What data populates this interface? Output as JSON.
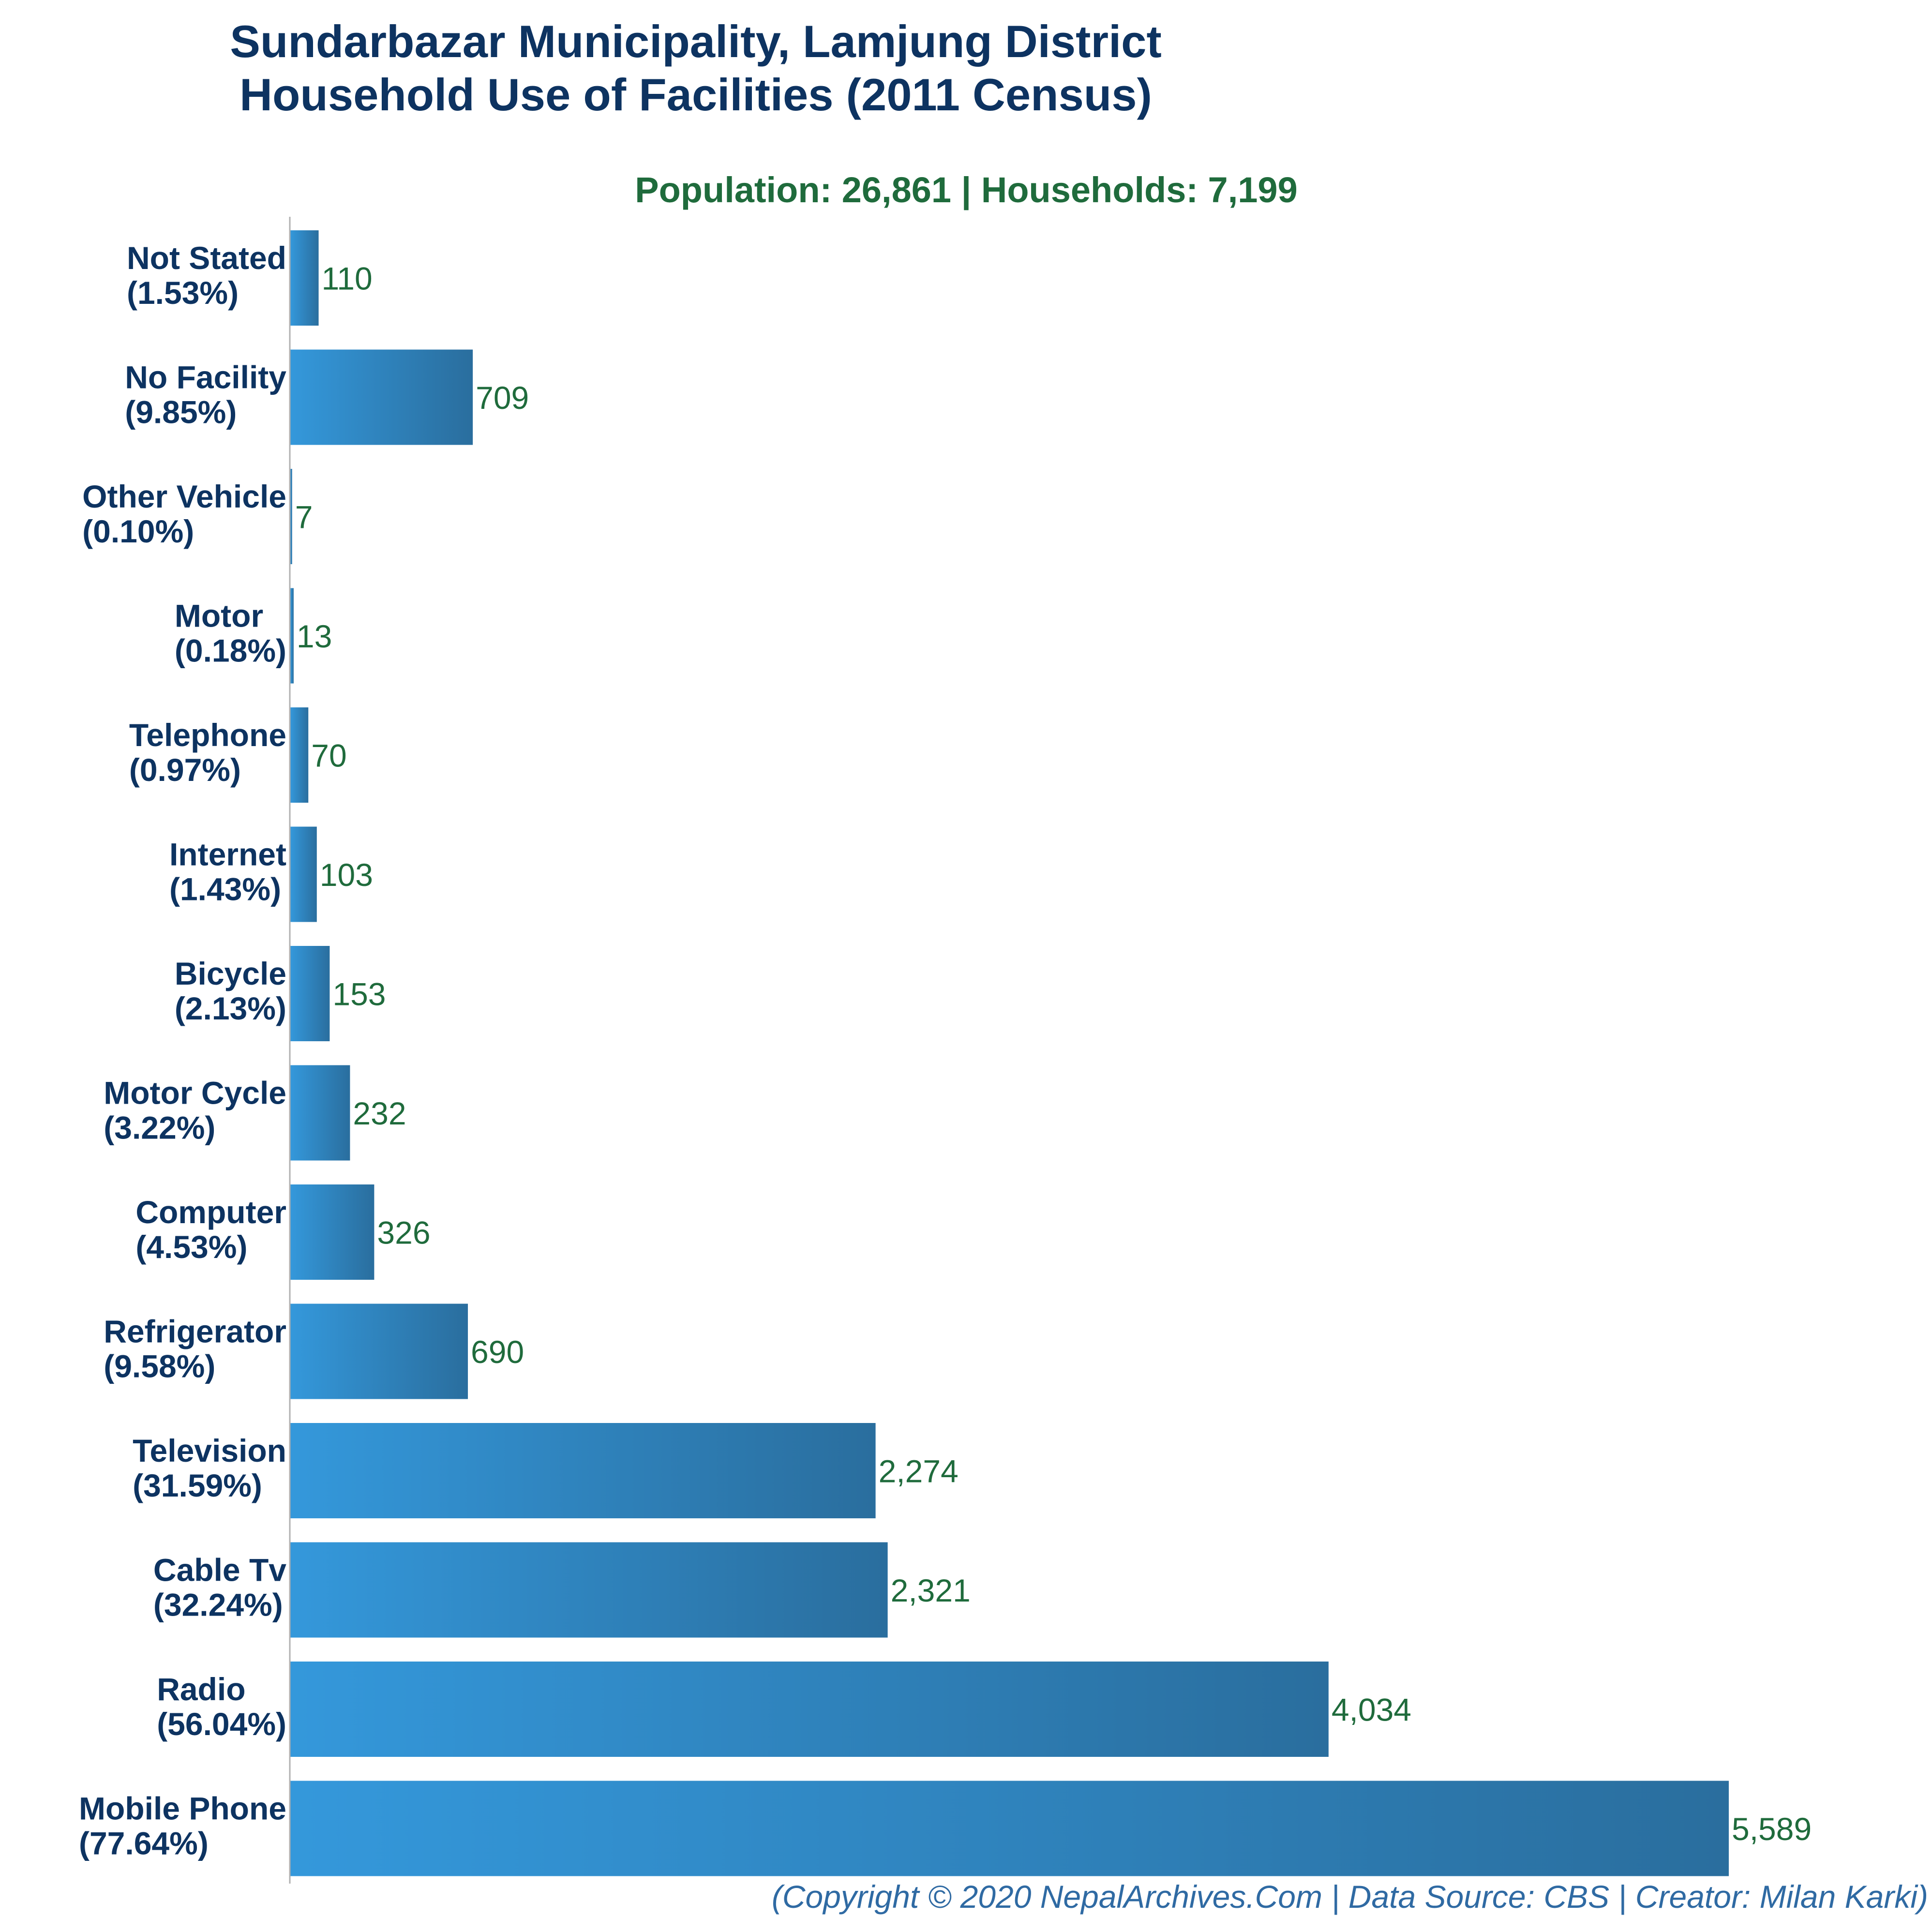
{
  "chart_data": {
    "type": "bar",
    "orientation": "horizontal",
    "title": [
      "Sundarbazar Municipality, Lamjung District",
      "Household Use of Facilities (2011 Census)"
    ],
    "subtitle": "Population: 26,861 | Households: 7,199",
    "categories": [
      {
        "name": "Not Stated",
        "pct": "(1.53%)"
      },
      {
        "name": "No Facility",
        "pct": "(9.85%)"
      },
      {
        "name": "Other Vehicle",
        "pct": "(0.10%)"
      },
      {
        "name": "Motor",
        "pct": "(0.18%)"
      },
      {
        "name": "Telephone",
        "pct": "(0.97%)"
      },
      {
        "name": "Internet",
        "pct": "(1.43%)"
      },
      {
        "name": "Bicycle",
        "pct": "(2.13%)"
      },
      {
        "name": "Motor Cycle",
        "pct": "(3.22%)"
      },
      {
        "name": "Computer",
        "pct": "(4.53%)"
      },
      {
        "name": "Refrigerator",
        "pct": "(9.58%)"
      },
      {
        "name": "Television",
        "pct": "(31.59%)"
      },
      {
        "name": "Cable Tv",
        "pct": "(32.24%)"
      },
      {
        "name": "Radio",
        "pct": "(56.04%)"
      },
      {
        "name": "Mobile Phone",
        "pct": "(77.64%)"
      }
    ],
    "values": [
      110,
      709,
      7,
      13,
      70,
      103,
      153,
      232,
      326,
      690,
      2274,
      2321,
      4034,
      5589
    ],
    "value_labels": [
      "110",
      "709",
      "7",
      "13",
      "70",
      "103",
      "153",
      "232",
      "326",
      "690",
      "2,274",
      "2,321",
      "4,034",
      "5,589"
    ],
    "xlim": [
      0,
      5589
    ],
    "grid": false,
    "bar_color_light": "#3498db",
    "bar_color_dark": "#2a6e9e",
    "title_color": "#0d3361",
    "subtitle_color": "#1f6b3c",
    "value_color": "#1f6b3c",
    "footer": "(Copyright © 2020 NepalArchives.Com | Data Source: CBS | Creator: Milan Karki)"
  }
}
